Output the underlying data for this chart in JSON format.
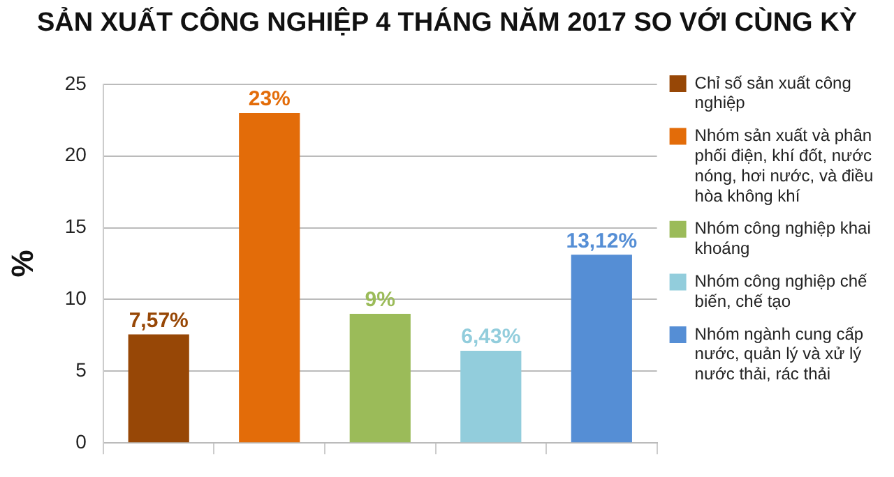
{
  "chart_data": {
    "type": "bar",
    "title": "SẢN XUẤT CÔNG NGHIỆP 4 THÁNG NĂM 2017 SO VỚI CÙNG KỲ",
    "ylabel": "%",
    "categories": [
      null,
      null,
      null,
      null,
      null
    ],
    "series": [
      {
        "name": "Chỉ số sản xuất công nghiệp",
        "color": "#974706",
        "values": [
          7.57,
          null,
          null,
          null,
          null
        ],
        "value_labels": [
          "7,57%",
          null,
          null,
          null,
          null
        ]
      },
      {
        "name": "Nhóm sản xuất và phân phối điện, khí đốt, nước nóng, hơi nước, và điều hòa không khí",
        "color": "#e36c09",
        "values": [
          null,
          23,
          null,
          null,
          null
        ],
        "value_labels": [
          null,
          "23%",
          null,
          null,
          null
        ]
      },
      {
        "name": "Nhóm công nghiệp khai khoáng",
        "color": "#9bbb59",
        "values": [
          null,
          null,
          9,
          null,
          null
        ],
        "value_labels": [
          null,
          null,
          "9%",
          null,
          null
        ]
      },
      {
        "name": "Nhóm công nghiệp chế biến, chế tạo",
        "color": "#92cddc",
        "values": [
          null,
          null,
          null,
          6.43,
          null
        ],
        "value_labels": [
          null,
          null,
          null,
          "6,43%",
          null
        ]
      },
      {
        "name": "Nhóm ngành cung cấp nước, quản lý và xử lý nước thải, rác thải",
        "color": "#558ed5",
        "values": [
          null,
          null,
          null,
          null,
          13.12
        ],
        "value_labels": [
          null,
          null,
          null,
          null,
          "13,12%"
        ]
      }
    ],
    "ylim": [
      0,
      25
    ],
    "yticks": [
      0,
      5,
      10,
      15,
      20,
      25
    ],
    "grid": "y",
    "legend": "right",
    "tick_labels": "y"
  }
}
